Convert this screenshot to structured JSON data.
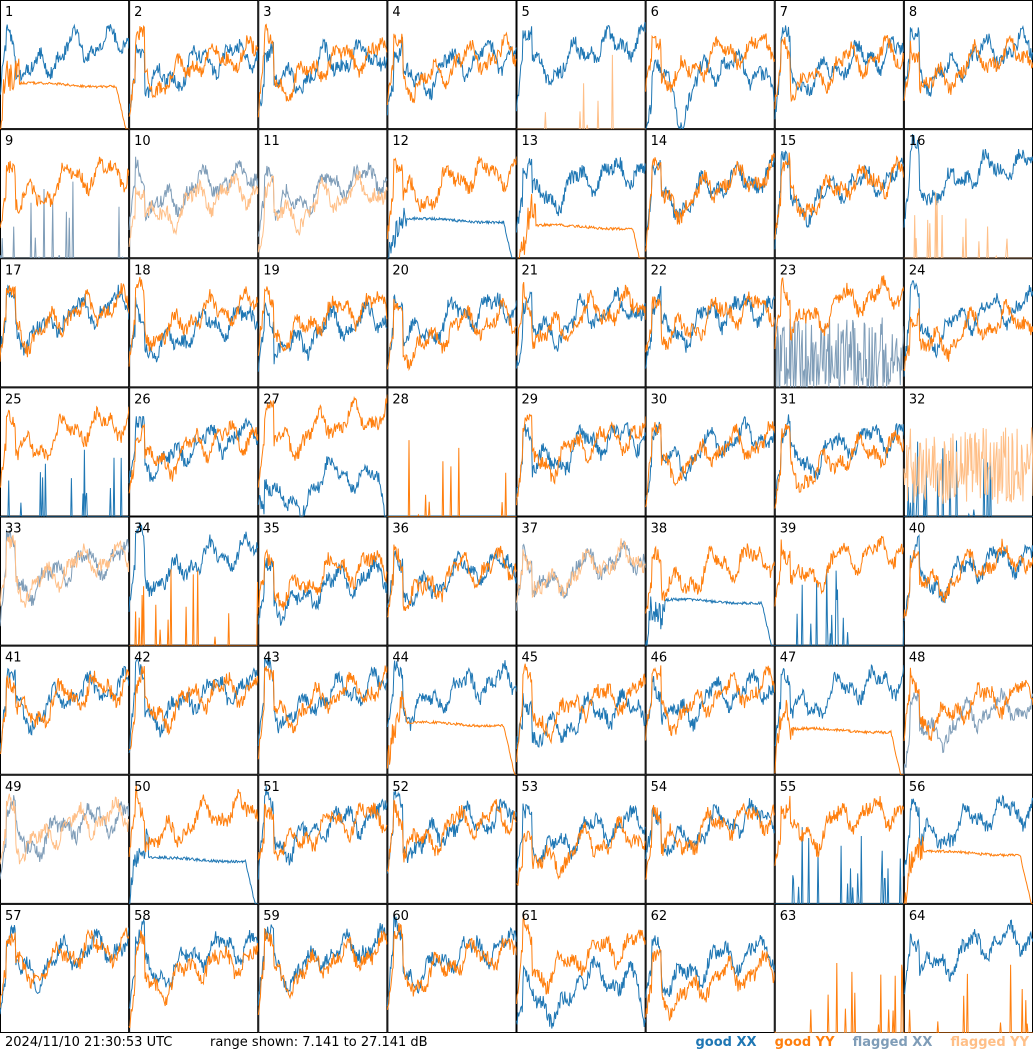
{
  "footer": {
    "timestamp": "2024/11/10 21:30:53 UTC",
    "range": "range shown: 7.141 to 27.141 dB"
  },
  "legend": {
    "good_xx": "good XX",
    "good_yy": "good YY",
    "flagged_xx": "flagged XX",
    "flagged_yy": "flagged YY"
  },
  "colors": {
    "good_xx": "#1f77b4",
    "good_yy": "#ff7f0e",
    "flagged_xx": "#7f9db8",
    "flagged_yy": "#ffbf87"
  },
  "chart_data": {
    "type": "line",
    "range_db": [
      7.141,
      27.141
    ],
    "panels": [
      {
        "id": 1,
        "xx": {
          "pattern": "spectrum",
          "level": 18,
          "flag": false
        },
        "yy": {
          "pattern": "rolloff",
          "level": 14,
          "flag": false
        }
      },
      {
        "id": 2,
        "xx": {
          "pattern": "spectrum",
          "level": 16,
          "flag": false
        },
        "yy": {
          "pattern": "spectrum",
          "level": 16,
          "flag": false
        }
      },
      {
        "id": 3,
        "xx": {
          "pattern": "spectrum",
          "level": 16,
          "flag": false
        },
        "yy": {
          "pattern": "spectrum",
          "level": 16,
          "flag": false
        }
      },
      {
        "id": 4,
        "xx": {
          "pattern": "spectrum",
          "level": 16,
          "flag": false
        },
        "yy": {
          "pattern": "spectrum",
          "level": 16,
          "flag": false
        }
      },
      {
        "id": 5,
        "xx": {
          "pattern": "spectrum",
          "level": 18,
          "flag": false
        },
        "yy": {
          "pattern": "spikes",
          "level": 8,
          "flag": true
        }
      },
      {
        "id": 6,
        "xx": {
          "pattern": "dip",
          "level": 15,
          "flag": false
        },
        "yy": {
          "pattern": "spectrum",
          "level": 17,
          "flag": false
        }
      },
      {
        "id": 7,
        "xx": {
          "pattern": "spectrum",
          "level": 16,
          "flag": false
        },
        "yy": {
          "pattern": "spectrum",
          "level": 16,
          "flag": false
        }
      },
      {
        "id": 8,
        "xx": {
          "pattern": "spectrum",
          "level": 17,
          "flag": false
        },
        "yy": {
          "pattern": "spectrum",
          "level": 16,
          "flag": false
        }
      },
      {
        "id": 9,
        "xx": {
          "pattern": "spikes",
          "level": 8,
          "flag": true
        },
        "yy": {
          "pattern": "spectrum",
          "level": 18,
          "flag": false
        }
      },
      {
        "id": 10,
        "xx": {
          "pattern": "spectrum",
          "level": 17,
          "flag": true
        },
        "yy": {
          "pattern": "spectrum",
          "level": 15,
          "flag": true
        }
      },
      {
        "id": 11,
        "xx": {
          "pattern": "spectrum",
          "level": 17,
          "flag": true
        },
        "yy": {
          "pattern": "spectrum",
          "level": 15,
          "flag": true
        }
      },
      {
        "id": 12,
        "xx": {
          "pattern": "rolloff",
          "level": 13,
          "flag": false
        },
        "yy": {
          "pattern": "spectrum",
          "level": 18,
          "flag": false
        }
      },
      {
        "id": 13,
        "xx": {
          "pattern": "spectrum",
          "level": 18,
          "flag": false
        },
        "yy": {
          "pattern": "rolloff",
          "level": 12,
          "flag": false
        }
      },
      {
        "id": 14,
        "xx": {
          "pattern": "spectrum",
          "level": 17,
          "flag": false
        },
        "yy": {
          "pattern": "spectrum",
          "level": 17,
          "flag": false
        }
      },
      {
        "id": 15,
        "xx": {
          "pattern": "spectrum",
          "level": 17,
          "flag": false
        },
        "yy": {
          "pattern": "spectrum",
          "level": 17,
          "flag": false
        }
      },
      {
        "id": 16,
        "xx": {
          "pattern": "spectrum",
          "level": 19,
          "flag": false
        },
        "yy": {
          "pattern": "spikes",
          "level": 8,
          "flag": true
        }
      },
      {
        "id": 17,
        "xx": {
          "pattern": "spectrum",
          "level": 17,
          "flag": false
        },
        "yy": {
          "pattern": "spectrum",
          "level": 17,
          "flag": false
        }
      },
      {
        "id": 18,
        "xx": {
          "pattern": "spectrum",
          "level": 15,
          "flag": false
        },
        "yy": {
          "pattern": "spectrum",
          "level": 17,
          "flag": false
        }
      },
      {
        "id": 19,
        "xx": {
          "pattern": "spectrum",
          "level": 15,
          "flag": false
        },
        "yy": {
          "pattern": "spectrum",
          "level": 17,
          "flag": false
        }
      },
      {
        "id": 20,
        "xx": {
          "pattern": "spectrum",
          "level": 17,
          "flag": false
        },
        "yy": {
          "pattern": "spectrum",
          "level": 15,
          "flag": false
        }
      },
      {
        "id": 21,
        "xx": {
          "pattern": "spectrum",
          "level": 17,
          "flag": false
        },
        "yy": {
          "pattern": "spectrum",
          "level": 17,
          "flag": false
        }
      },
      {
        "id": 22,
        "xx": {
          "pattern": "spectrum",
          "level": 17,
          "flag": false
        },
        "yy": {
          "pattern": "spectrum",
          "level": 17,
          "flag": false
        }
      },
      {
        "id": 23,
        "xx": {
          "pattern": "noisy",
          "level": 12,
          "flag": true
        },
        "yy": {
          "pattern": "spectrum",
          "level": 19,
          "flag": false
        }
      },
      {
        "id": 24,
        "xx": {
          "pattern": "spectrum",
          "level": 17,
          "flag": false
        },
        "yy": {
          "pattern": "spectrum",
          "level": 15,
          "flag": false
        }
      },
      {
        "id": 25,
        "xx": {
          "pattern": "spikes",
          "level": 8,
          "flag": false
        },
        "yy": {
          "pattern": "spectrum",
          "level": 19,
          "flag": false
        }
      },
      {
        "id": 26,
        "xx": {
          "pattern": "spectrum",
          "level": 17,
          "flag": false
        },
        "yy": {
          "pattern": "spectrum",
          "level": 17,
          "flag": false
        }
      },
      {
        "id": 27,
        "xx": {
          "pattern": "dip",
          "level": 12,
          "flag": false
        },
        "yy": {
          "pattern": "spectrum",
          "level": 20,
          "flag": false
        }
      },
      {
        "id": 28,
        "xx": {
          "pattern": "flat",
          "level": 7.2,
          "flag": false
        },
        "yy": {
          "pattern": "spikes",
          "level": 8,
          "flag": false
        }
      },
      {
        "id": 29,
        "xx": {
          "pattern": "spectrum",
          "level": 17,
          "flag": false
        },
        "yy": {
          "pattern": "spectrum",
          "level": 17,
          "flag": false
        }
      },
      {
        "id": 30,
        "xx": {
          "pattern": "spectrum",
          "level": 17,
          "flag": false
        },
        "yy": {
          "pattern": "spectrum",
          "level": 16,
          "flag": false
        }
      },
      {
        "id": 31,
        "xx": {
          "pattern": "spectrum",
          "level": 17,
          "flag": false
        },
        "yy": {
          "pattern": "spectrum",
          "level": 15,
          "flag": false
        }
      },
      {
        "id": 32,
        "xx": {
          "pattern": "spikes",
          "level": 8,
          "flag": false
        },
        "yy": {
          "pattern": "noisy",
          "level": 15,
          "flag": true
        }
      },
      {
        "id": 33,
        "xx": {
          "pattern": "spectrum",
          "level": 18,
          "flag": true
        },
        "yy": {
          "pattern": "spectrum",
          "level": 18,
          "flag": true
        }
      },
      {
        "id": 34,
        "xx": {
          "pattern": "spectrum",
          "level": 19,
          "flag": false
        },
        "yy": {
          "pattern": "spikes",
          "level": 8,
          "flag": false
        }
      },
      {
        "id": 35,
        "xx": {
          "pattern": "spectrum",
          "level": 15,
          "flag": false
        },
        "yy": {
          "pattern": "spectrum",
          "level": 17,
          "flag": false
        }
      },
      {
        "id": 36,
        "xx": {
          "pattern": "spectrum",
          "level": 17,
          "flag": false
        },
        "yy": {
          "pattern": "spectrum",
          "level": 17,
          "flag": false
        }
      },
      {
        "id": 37,
        "xx": {
          "pattern": "spectrum",
          "level": 18,
          "flag": true
        },
        "yy": {
          "pattern": "spectrum",
          "level": 18,
          "flag": true
        }
      },
      {
        "id": 38,
        "xx": {
          "pattern": "rolloff",
          "level": 14,
          "flag": false
        },
        "yy": {
          "pattern": "spectrum",
          "level": 18,
          "flag": false
        }
      },
      {
        "id": 39,
        "xx": {
          "pattern": "spikes",
          "level": 8,
          "flag": false
        },
        "yy": {
          "pattern": "spectrum",
          "level": 19,
          "flag": false
        }
      },
      {
        "id": 40,
        "xx": {
          "pattern": "spectrum",
          "level": 18,
          "flag": false
        },
        "yy": {
          "pattern": "spectrum",
          "level": 18,
          "flag": false
        }
      },
      {
        "id": 41,
        "xx": {
          "pattern": "spectrum",
          "level": 18,
          "flag": false
        },
        "yy": {
          "pattern": "spectrum",
          "level": 18,
          "flag": false
        }
      },
      {
        "id": 42,
        "xx": {
          "pattern": "spectrum",
          "level": 18,
          "flag": false
        },
        "yy": {
          "pattern": "spectrum",
          "level": 18,
          "flag": false
        }
      },
      {
        "id": 43,
        "xx": {
          "pattern": "spectrum",
          "level": 18,
          "flag": false
        },
        "yy": {
          "pattern": "spectrum",
          "level": 18,
          "flag": false
        }
      },
      {
        "id": 44,
        "xx": {
          "pattern": "spectrum",
          "level": 19,
          "flag": false
        },
        "yy": {
          "pattern": "rolloff",
          "level": 15,
          "flag": false
        }
      },
      {
        "id": 45,
        "xx": {
          "pattern": "spectrum",
          "level": 15,
          "flag": false
        },
        "yy": {
          "pattern": "spectrum",
          "level": 17,
          "flag": false
        }
      },
      {
        "id": 46,
        "xx": {
          "pattern": "spectrum",
          "level": 18,
          "flag": false
        },
        "yy": {
          "pattern": "spectrum",
          "level": 18,
          "flag": false
        }
      },
      {
        "id": 47,
        "xx": {
          "pattern": "spectrum",
          "level": 19,
          "flag": false
        },
        "yy": {
          "pattern": "rolloff",
          "level": 14,
          "flag": false
        }
      },
      {
        "id": 48,
        "xx": {
          "pattern": "spectrum",
          "level": 15,
          "flag": true
        },
        "yy": {
          "pattern": "spectrum",
          "level": 17,
          "flag": false
        }
      },
      {
        "id": 49,
        "xx": {
          "pattern": "spectrum",
          "level": 18,
          "flag": true
        },
        "yy": {
          "pattern": "spectrum",
          "level": 18,
          "flag": true
        }
      },
      {
        "id": 50,
        "xx": {
          "pattern": "rolloff",
          "level": 14,
          "flag": false
        },
        "yy": {
          "pattern": "spectrum",
          "level": 19,
          "flag": false
        }
      },
      {
        "id": 51,
        "xx": {
          "pattern": "spectrum",
          "level": 18,
          "flag": false
        },
        "yy": {
          "pattern": "spectrum",
          "level": 18,
          "flag": false
        }
      },
      {
        "id": 52,
        "xx": {
          "pattern": "spectrum",
          "level": 18,
          "flag": false
        },
        "yy": {
          "pattern": "spectrum",
          "level": 18,
          "flag": false
        }
      },
      {
        "id": 53,
        "xx": {
          "pattern": "spectrum",
          "level": 17,
          "flag": false
        },
        "yy": {
          "pattern": "spectrum",
          "level": 15,
          "flag": false
        }
      },
      {
        "id": 54,
        "xx": {
          "pattern": "spectrum",
          "level": 18,
          "flag": false
        },
        "yy": {
          "pattern": "spectrum",
          "level": 18,
          "flag": false
        }
      },
      {
        "id": 55,
        "xx": {
          "pattern": "spikes",
          "level": 8,
          "flag": false
        },
        "yy": {
          "pattern": "spectrum",
          "level": 19,
          "flag": false
        }
      },
      {
        "id": 56,
        "xx": {
          "pattern": "spectrum",
          "level": 19,
          "flag": false
        },
        "yy": {
          "pattern": "rolloff",
          "level": 15,
          "flag": false
        }
      },
      {
        "id": 57,
        "xx": {
          "pattern": "spectrum",
          "level": 18,
          "flag": false
        },
        "yy": {
          "pattern": "spectrum",
          "level": 18,
          "flag": false
        }
      },
      {
        "id": 58,
        "xx": {
          "pattern": "spectrum",
          "level": 18,
          "flag": false
        },
        "yy": {
          "pattern": "spectrum",
          "level": 16,
          "flag": false
        }
      },
      {
        "id": 59,
        "xx": {
          "pattern": "spectrum",
          "level": 18,
          "flag": false
        },
        "yy": {
          "pattern": "spectrum",
          "level": 17,
          "flag": false
        }
      },
      {
        "id": 60,
        "xx": {
          "pattern": "spectrum",
          "level": 18,
          "flag": false
        },
        "yy": {
          "pattern": "spectrum",
          "level": 17,
          "flag": false
        }
      },
      {
        "id": 61,
        "xx": {
          "pattern": "dip",
          "level": 14,
          "flag": false
        },
        "yy": {
          "pattern": "spectrum",
          "level": 18,
          "flag": false
        }
      },
      {
        "id": 62,
        "xx": {
          "pattern": "spectrum",
          "level": 17,
          "flag": false
        },
        "yy": {
          "pattern": "spectrum",
          "level": 14,
          "flag": false
        }
      },
      {
        "id": 63,
        "xx": {
          "pattern": "flat",
          "level": 7.2,
          "flag": false
        },
        "yy": {
          "pattern": "spikes",
          "level": 8,
          "flag": false
        }
      },
      {
        "id": 64,
        "xx": {
          "pattern": "spectrum",
          "level": 19,
          "flag": false
        },
        "yy": {
          "pattern": "spikes",
          "level": 8,
          "flag": false
        }
      }
    ]
  }
}
